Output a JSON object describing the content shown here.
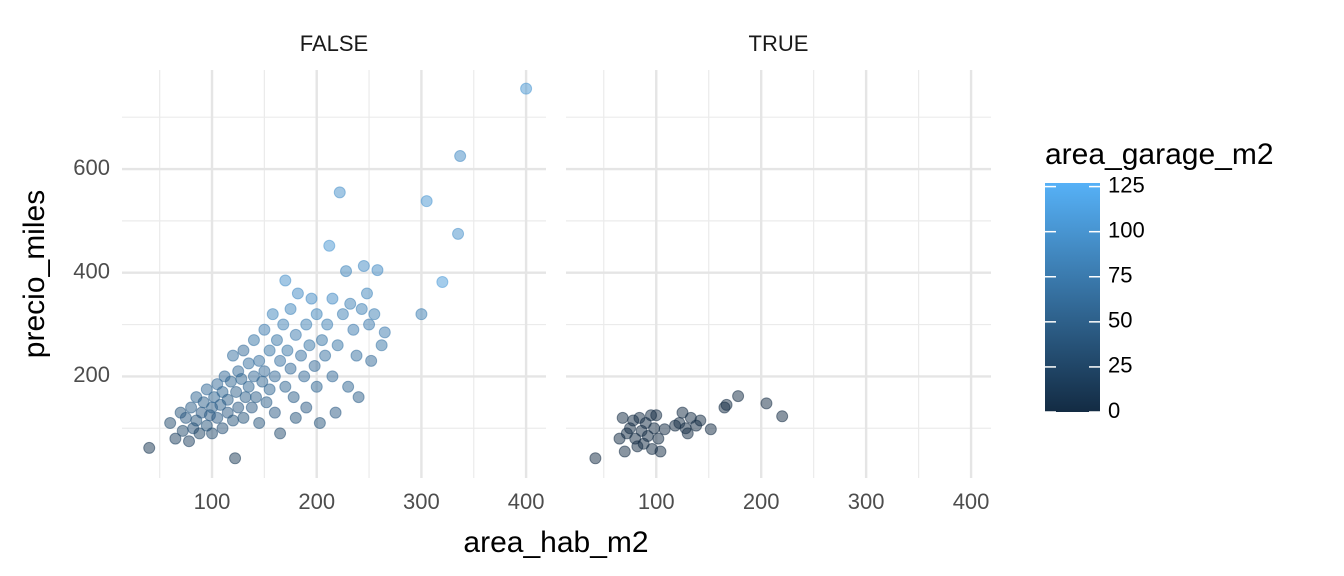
{
  "chart_data": {
    "type": "scatter",
    "x_label": "area_hab_m2",
    "y_label": "precio_miles",
    "xlim": [
      14,
      419
    ],
    "ylim": [
      4,
      791
    ],
    "xticks": [
      100,
      200,
      300,
      400
    ],
    "yticks": [
      200,
      400,
      600
    ],
    "x_minor_ticks": [
      50,
      150,
      250,
      350
    ],
    "y_minor_ticks": [
      100,
      300,
      500,
      700
    ],
    "grid": true,
    "alpha": 0.5,
    "colorbar": {
      "title": "area_garage_m2",
      "lim": [
        0,
        127
      ],
      "ticks": [
        0,
        25,
        50,
        75,
        100,
        125
      ],
      "colors": [
        "#132B43",
        "#56B1F7"
      ]
    },
    "series": [
      {
        "name": "FALSE",
        "x": [
          40,
          60,
          65,
          70,
          72,
          75,
          78,
          80,
          82,
          85,
          85,
          88,
          90,
          92,
          95,
          95,
          98,
          100,
          100,
          102,
          105,
          105,
          108,
          110,
          110,
          112,
          115,
          115,
          118,
          120,
          120,
          122,
          123,
          125,
          125,
          128,
          130,
          130,
          132,
          135,
          135,
          138,
          140,
          140,
          142,
          145,
          145,
          148,
          150,
          150,
          152,
          155,
          155,
          158,
          160,
          160,
          162,
          165,
          165,
          168,
          170,
          170,
          172,
          175,
          175,
          178,
          180,
          180,
          182,
          185,
          188,
          190,
          190,
          193,
          195,
          198,
          200,
          200,
          203,
          205,
          208,
          210,
          212,
          215,
          215,
          218,
          220,
          222,
          225,
          228,
          230,
          232,
          235,
          238,
          240,
          243,
          245,
          248,
          250,
          252,
          255,
          258,
          262,
          265,
          300,
          305,
          320,
          335,
          337,
          400
        ],
        "values": [
          62,
          110,
          80,
          130,
          95,
          120,
          75,
          140,
          100,
          115,
          160,
          90,
          130,
          150,
          105,
          175,
          125,
          140,
          90,
          160,
          120,
          185,
          145,
          100,
          170,
          200,
          130,
          155,
          190,
          115,
          240,
          42,
          170,
          140,
          210,
          195,
          120,
          250,
          160,
          180,
          225,
          140,
          200,
          270,
          160,
          110,
          230,
          190,
          210,
          290,
          150,
          250,
          175,
          320,
          200,
          130,
          270,
          90,
          230,
          300,
          385,
          180,
          250,
          215,
          330,
          160,
          280,
          120,
          360,
          240,
          200,
          300,
          140,
          260,
          350,
          220,
          180,
          320,
          110,
          270,
          240,
          300,
          452,
          200,
          350,
          130,
          260,
          555,
          320,
          403,
          180,
          340,
          290,
          240,
          160,
          330,
          413,
          360,
          300,
          230,
          320,
          405,
          260,
          285,
          320,
          538,
          382,
          475,
          625,
          755
        ],
        "color_values": [
          10,
          30,
          20,
          40,
          30,
          45,
          20,
          50,
          35,
          40,
          55,
          25,
          45,
          50,
          40,
          60,
          45,
          50,
          30,
          55,
          45,
          60,
          50,
          35,
          55,
          60,
          45,
          50,
          55,
          40,
          65,
          15,
          50,
          45,
          60,
          55,
          40,
          60,
          50,
          55,
          65,
          45,
          60,
          70,
          50,
          40,
          65,
          55,
          60,
          75,
          50,
          70,
          55,
          85,
          60,
          45,
          70,
          30,
          65,
          80,
          95,
          55,
          70,
          60,
          85,
          50,
          75,
          40,
          90,
          65,
          60,
          80,
          45,
          70,
          90,
          60,
          55,
          85,
          40,
          70,
          65,
          80,
          100,
          60,
          90,
          45,
          70,
          95,
          80,
          85,
          55,
          80,
          75,
          65,
          50,
          80,
          90,
          85,
          75,
          60,
          80,
          90,
          70,
          75,
          80,
          100,
          105,
          95,
          90,
          100
        ]
      },
      {
        "name": "TRUE",
        "x": [
          42,
          65,
          68,
          70,
          72,
          75,
          78,
          80,
          82,
          84,
          86,
          88,
          90,
          92,
          95,
          96,
          98,
          100,
          102,
          104,
          108,
          118,
          122,
          125,
          128,
          130,
          133,
          138,
          142,
          152,
          165,
          167,
          178,
          205,
          220
        ],
        "values": [
          42,
          80,
          120,
          55,
          90,
          100,
          115,
          80,
          65,
          120,
          95,
          70,
          110,
          85,
          125,
          60,
          100,
          125,
          80,
          55,
          98,
          105,
          110,
          130,
          100,
          90,
          120,
          105,
          115,
          98,
          140,
          145,
          162,
          148,
          123
        ],
        "color_values": [
          0,
          0,
          0,
          0,
          0,
          0,
          0,
          0,
          0,
          0,
          0,
          0,
          0,
          0,
          0,
          0,
          0,
          0,
          0,
          0,
          0,
          0,
          0,
          0,
          0,
          0,
          0,
          0,
          0,
          0,
          0,
          0,
          0,
          0,
          0
        ]
      }
    ]
  }
}
